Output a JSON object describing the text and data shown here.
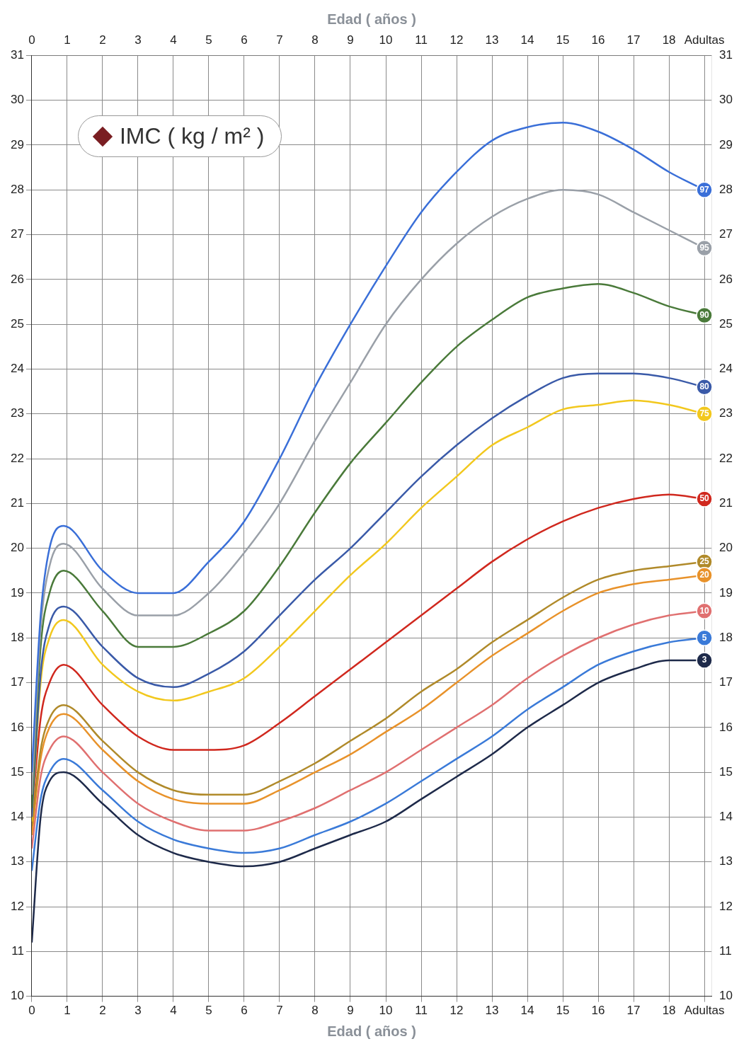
{
  "chart_data": {
    "type": "line",
    "xlabel": "Edad ( años )",
    "x2label": "Edad ( años )",
    "ylabel": "IMC ( kg / m² )",
    "x": [
      0,
      0.25,
      0.5,
      0.9,
      2,
      3,
      4,
      5,
      6,
      7,
      8,
      9,
      10,
      11,
      12,
      13,
      14,
      15,
      16,
      17,
      18,
      19
    ],
    "xlim": [
      0,
      19.2
    ],
    "xticks": [
      0,
      1,
      2,
      3,
      4,
      5,
      6,
      7,
      8,
      9,
      10,
      11,
      12,
      13,
      14,
      15,
      16,
      17,
      18,
      {
        "value": 19,
        "label": "Adultas"
      }
    ],
    "x2lim": [
      0,
      19.2
    ],
    "x2ticks": [
      0,
      1,
      2,
      3,
      4,
      5,
      6,
      7,
      8,
      9,
      10,
      11,
      12,
      13,
      14,
      15,
      16,
      17,
      18,
      {
        "value": 19,
        "label": "Adultas"
      }
    ],
    "ylim": [
      10,
      31
    ],
    "yticks": [
      10,
      11,
      12,
      13,
      14,
      15,
      16,
      17,
      18,
      19,
      20,
      21,
      22,
      23,
      24,
      25,
      26,
      27,
      28,
      29,
      30,
      31
    ],
    "y2lim": [
      10,
      31
    ],
    "y2ticks": [
      10,
      11,
      12,
      13,
      14,
      15,
      16,
      17,
      18,
      19,
      20,
      21,
      22,
      23,
      24,
      25,
      26,
      27,
      28,
      29,
      30,
      31
    ],
    "grid": true,
    "legend": false,
    "marker": "none",
    "line_style": "solid",
    "series": [
      {
        "name": "97",
        "color": "#3a6fd8",
        "values": [
          15.0,
          18.5,
          20.0,
          20.5,
          19.5,
          19.0,
          19.0,
          19.7,
          20.6,
          22.0,
          23.6,
          25.0,
          26.3,
          27.5,
          28.4,
          29.1,
          29.4,
          29.5,
          29.3,
          28.9,
          28.4,
          28.0
        ]
      },
      {
        "name": "95",
        "color": "#9aa0a8",
        "values": [
          14.5,
          18.2,
          19.6,
          20.1,
          19.1,
          18.5,
          18.5,
          19.0,
          19.9,
          21.0,
          22.4,
          23.7,
          25.0,
          26.0,
          26.8,
          27.4,
          27.8,
          28.0,
          27.9,
          27.5,
          27.1,
          26.7
        ]
      },
      {
        "name": "90",
        "color": "#4a7a3a",
        "values": [
          14.2,
          17.8,
          19.0,
          19.5,
          18.6,
          17.8,
          17.8,
          18.1,
          18.6,
          19.6,
          20.8,
          21.9,
          22.8,
          23.7,
          24.5,
          25.1,
          25.6,
          25.8,
          25.9,
          25.7,
          25.4,
          25.2
        ]
      },
      {
        "name": "80",
        "color": "#3a5aa8",
        "values": [
          14.0,
          17.2,
          18.3,
          18.7,
          17.8,
          17.1,
          16.9,
          17.2,
          17.7,
          18.5,
          19.3,
          20.0,
          20.8,
          21.6,
          22.3,
          22.9,
          23.4,
          23.8,
          23.9,
          23.9,
          23.8,
          23.6
        ]
      },
      {
        "name": "75",
        "color": "#f2c81e",
        "values": [
          13.9,
          17.0,
          18.0,
          18.4,
          17.4,
          16.8,
          16.6,
          16.8,
          17.1,
          17.8,
          18.6,
          19.4,
          20.1,
          20.9,
          21.6,
          22.3,
          22.7,
          23.1,
          23.2,
          23.3,
          23.2,
          23.0
        ]
      },
      {
        "name": "50",
        "color": "#d0281e",
        "values": [
          14.0,
          16.2,
          17.0,
          17.4,
          16.5,
          15.8,
          15.5,
          15.5,
          15.6,
          16.1,
          16.7,
          17.3,
          17.9,
          18.5,
          19.1,
          19.7,
          20.2,
          20.6,
          20.9,
          21.1,
          21.2,
          21.1
        ]
      },
      {
        "name": "25",
        "color": "#b08a2a",
        "values": [
          13.8,
          15.5,
          16.2,
          16.5,
          15.7,
          15.0,
          14.6,
          14.5,
          14.5,
          14.8,
          15.2,
          15.7,
          16.2,
          16.8,
          17.3,
          17.9,
          18.4,
          18.9,
          19.3,
          19.5,
          19.6,
          19.7
        ]
      },
      {
        "name": "20",
        "color": "#e8922a",
        "values": [
          13.6,
          15.3,
          16.0,
          16.3,
          15.5,
          14.8,
          14.4,
          14.3,
          14.3,
          14.6,
          15.0,
          15.4,
          15.9,
          16.4,
          17.0,
          17.6,
          18.1,
          18.6,
          19.0,
          19.2,
          19.3,
          19.4
        ]
      },
      {
        "name": "10",
        "color": "#e07070",
        "values": [
          13.3,
          14.9,
          15.5,
          15.8,
          15.0,
          14.3,
          13.9,
          13.7,
          13.7,
          13.9,
          14.2,
          14.6,
          15.0,
          15.5,
          16.0,
          16.5,
          17.1,
          17.6,
          18.0,
          18.3,
          18.5,
          18.6
        ]
      },
      {
        "name": "5",
        "color": "#3a7ad8",
        "values": [
          12.8,
          14.4,
          15.0,
          15.3,
          14.6,
          13.9,
          13.5,
          13.3,
          13.2,
          13.3,
          13.6,
          13.9,
          14.3,
          14.8,
          15.3,
          15.8,
          16.4,
          16.9,
          17.4,
          17.7,
          17.9,
          18.0
        ]
      },
      {
        "name": "3",
        "color": "#1e2a4a",
        "values": [
          11.2,
          14.0,
          14.8,
          15.0,
          14.3,
          13.6,
          13.2,
          13.0,
          12.9,
          13.0,
          13.3,
          13.6,
          13.9,
          14.4,
          14.9,
          15.4,
          16.0,
          16.5,
          17.0,
          17.3,
          17.5,
          17.5
        ]
      }
    ]
  }
}
